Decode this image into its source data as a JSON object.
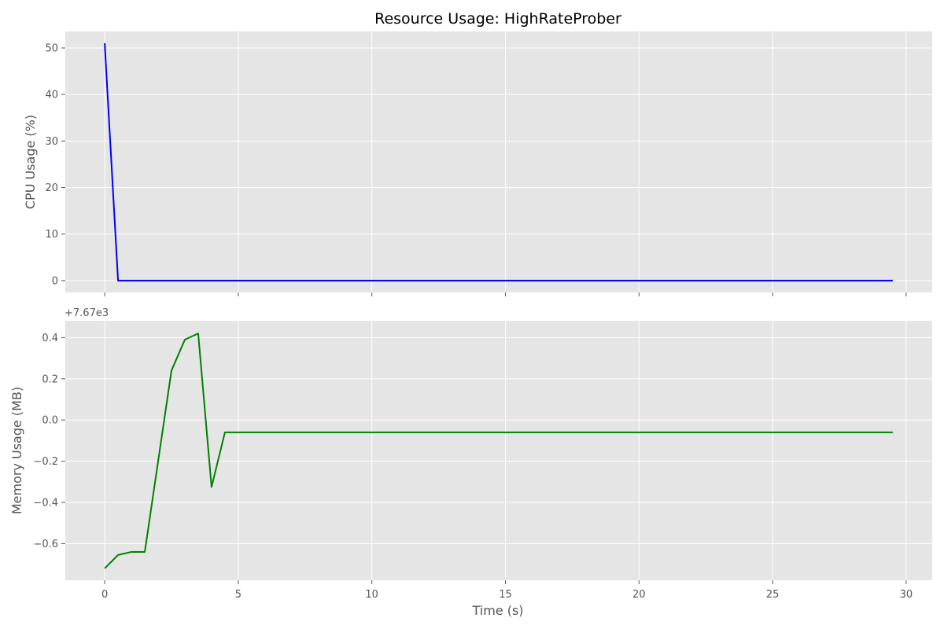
{
  "chart_data": [
    {
      "type": "line",
      "title": "Resource Usage: HighRateProber",
      "xlabel": "",
      "ylabel": "CPU Usage (%)",
      "xlim": [
        -1.475,
        30.975
      ],
      "ylim": [
        -2.55,
        53.55
      ],
      "xticks": [
        0,
        5,
        10,
        15,
        20,
        25,
        30
      ],
      "show_xtick_labels": false,
      "yticks": [
        0,
        10,
        20,
        30,
        40,
        50
      ],
      "ytick_labels": [
        "0",
        "10",
        "20",
        "30",
        "40",
        "50"
      ],
      "grid": true,
      "color": "#0000ff",
      "series": [
        {
          "x": [
            0,
            0.5,
            1,
            1.5,
            2,
            2.5,
            3,
            3.5,
            4,
            4.5,
            5,
            5.5,
            6,
            6.5,
            7,
            7.5,
            8,
            8.5,
            9,
            9.5,
            10,
            10.5,
            11,
            11.5,
            12,
            12.5,
            13,
            13.5,
            14,
            14.5,
            15,
            15.5,
            16,
            16.5,
            17,
            17.5,
            18,
            18.5,
            19,
            19.5,
            20,
            20.5,
            21,
            21.5,
            22,
            22.5,
            23,
            23.5,
            24,
            24.5,
            25,
            25.5,
            26,
            26.5,
            27,
            27.5,
            28,
            28.5,
            29,
            29.5
          ],
          "y": [
            51.0,
            0,
            0,
            0,
            0,
            0,
            0,
            0,
            0,
            0,
            0,
            0,
            0,
            0,
            0,
            0,
            0,
            0,
            0,
            0,
            0,
            0,
            0,
            0,
            0,
            0,
            0,
            0,
            0,
            0,
            0,
            0,
            0,
            0,
            0,
            0,
            0,
            0,
            0,
            0,
            0,
            0,
            0,
            0,
            0,
            0,
            0,
            0,
            0,
            0,
            0,
            0,
            0,
            0,
            0,
            0,
            0,
            0,
            0,
            0
          ]
        }
      ]
    },
    {
      "type": "line",
      "title": "",
      "xlabel": "Time (s)",
      "ylabel": "Memory Usage (MB)",
      "offset_text": "+7.67e3",
      "xlim": [
        -1.475,
        30.975
      ],
      "ylim": [
        -0.7775,
        0.4815
      ],
      "xticks": [
        0,
        5,
        10,
        15,
        20,
        25,
        30
      ],
      "xtick_labels": [
        "0",
        "5",
        "10",
        "15",
        "20",
        "25",
        "30"
      ],
      "show_xtick_labels": true,
      "yticks": [
        -0.6,
        -0.4,
        -0.2,
        0.0,
        0.2,
        0.4
      ],
      "ytick_labels": [
        "−0.6",
        "−0.4",
        "−0.2",
        "0.0",
        "0.2",
        "0.4"
      ],
      "grid": true,
      "color": "#008000",
      "series": [
        {
          "x": [
            0,
            0.5,
            1,
            1.5,
            2,
            2.5,
            3,
            3.5,
            4,
            4.5,
            5,
            5.5,
            6,
            6.5,
            7,
            7.5,
            8,
            8.5,
            9,
            9.5,
            10,
            10.5,
            11,
            11.5,
            12,
            12.5,
            13,
            13.5,
            14,
            14.5,
            15,
            15.5,
            16,
            16.5,
            17,
            17.5,
            18,
            18.5,
            19,
            19.5,
            20,
            20.5,
            21,
            21.5,
            22,
            22.5,
            23,
            23.5,
            24,
            24.5,
            25,
            25.5,
            26,
            26.5,
            27,
            27.5,
            28,
            28.5,
            29,
            29.5
          ],
          "y": [
            -0.72,
            -0.655,
            -0.64,
            -0.64,
            -0.2,
            0.24,
            0.39,
            0.42,
            -0.325,
            -0.06,
            -0.06,
            -0.06,
            -0.06,
            -0.06,
            -0.06,
            -0.06,
            -0.06,
            -0.06,
            -0.06,
            -0.06,
            -0.06,
            -0.06,
            -0.06,
            -0.06,
            -0.06,
            -0.06,
            -0.06,
            -0.06,
            -0.06,
            -0.06,
            -0.06,
            -0.06,
            -0.06,
            -0.06,
            -0.06,
            -0.06,
            -0.06,
            -0.06,
            -0.06,
            -0.06,
            -0.06,
            -0.06,
            -0.06,
            -0.06,
            -0.06,
            -0.06,
            -0.06,
            -0.06,
            -0.06,
            -0.06,
            -0.06,
            -0.06,
            -0.06,
            -0.06,
            -0.06,
            -0.06,
            -0.06,
            -0.06,
            -0.06,
            -0.06
          ]
        }
      ]
    }
  ]
}
